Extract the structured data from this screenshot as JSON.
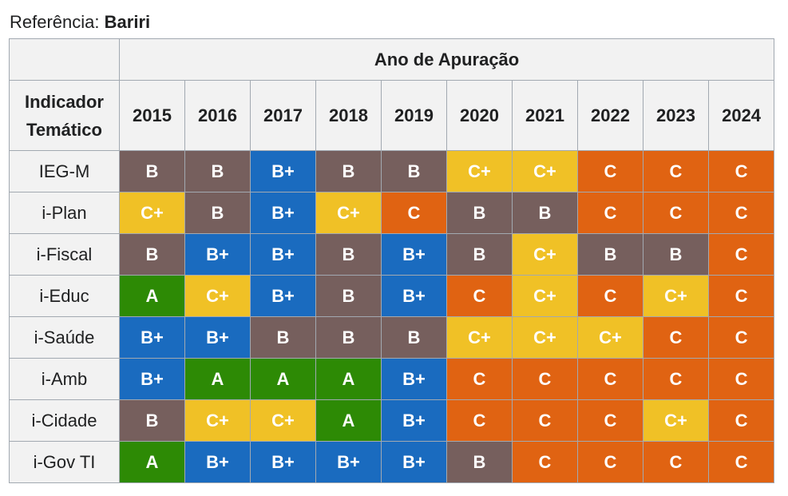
{
  "caption": {
    "label": "Referência:",
    "city": "Bariri"
  },
  "table": {
    "year_group_header": "Ano de Apuração",
    "indicator_header_line1": "Indicador",
    "indicator_header_line2": "Temático",
    "years": [
      "2015",
      "2016",
      "2017",
      "2018",
      "2019",
      "2020",
      "2021",
      "2022",
      "2023",
      "2024"
    ],
    "rows": [
      {
        "indicator": "IEG-M",
        "grades": [
          "B",
          "B",
          "B+",
          "B",
          "B",
          "C+",
          "C+",
          "C",
          "C",
          "C"
        ]
      },
      {
        "indicator": "i-Plan",
        "grades": [
          "C+",
          "B",
          "B+",
          "C+",
          "C",
          "B",
          "B",
          "C",
          "C",
          "C"
        ]
      },
      {
        "indicator": "i-Fiscal",
        "grades": [
          "B",
          "B+",
          "B+",
          "B",
          "B+",
          "B",
          "C+",
          "B",
          "B",
          "C"
        ]
      },
      {
        "indicator": "i-Educ",
        "grades": [
          "A",
          "C+",
          "B+",
          "B",
          "B+",
          "C",
          "C+",
          "C",
          "C+",
          "C"
        ]
      },
      {
        "indicator": "i-Saúde",
        "grades": [
          "B+",
          "B+",
          "B",
          "B",
          "B",
          "C+",
          "C+",
          "C+",
          "C",
          "C"
        ]
      },
      {
        "indicator": "i-Amb",
        "grades": [
          "B+",
          "A",
          "A",
          "A",
          "B+",
          "C",
          "C",
          "C",
          "C",
          "C"
        ]
      },
      {
        "indicator": "i-Cidade",
        "grades": [
          "B",
          "C+",
          "C+",
          "A",
          "B+",
          "C",
          "C",
          "C",
          "C+",
          "C"
        ]
      },
      {
        "indicator": "i-Gov TI",
        "grades": [
          "A",
          "B+",
          "B+",
          "B+",
          "B+",
          "B",
          "C",
          "C",
          "C",
          "C"
        ]
      }
    ]
  },
  "grade_colors": {
    "A": "#2d8a05",
    "B+": "#1a6bbf",
    "B": "#765f5d",
    "C+": "#f0c126",
    "C": "#e06312"
  }
}
